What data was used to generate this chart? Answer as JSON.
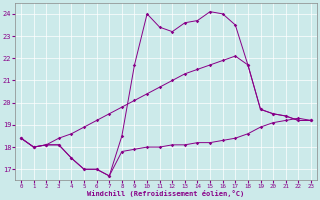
{
  "xlabel": "Windchill (Refroidissement éolien,°C)",
  "ylabel": "",
  "bg_color": "#cceaea",
  "line_color": "#880088",
  "xlim_min": -0.5,
  "xlim_max": 23.5,
  "ylim_min": 16.5,
  "ylim_max": 24.5,
  "yticks": [
    17,
    18,
    19,
    20,
    21,
    22,
    23,
    24
  ],
  "xticks": [
    0,
    1,
    2,
    3,
    4,
    5,
    6,
    7,
    8,
    9,
    10,
    11,
    12,
    13,
    14,
    15,
    16,
    17,
    18,
    19,
    20,
    21,
    22,
    23
  ],
  "line1_x": [
    0,
    1,
    2,
    3,
    4,
    5,
    6,
    7,
    8,
    9,
    10,
    11,
    12,
    13,
    14,
    15,
    16,
    17,
    18,
    19,
    20,
    21,
    22,
    23
  ],
  "line1_y": [
    18.4,
    18.0,
    18.1,
    18.1,
    17.5,
    17.0,
    17.0,
    16.7,
    17.8,
    17.9,
    18.0,
    18.0,
    18.1,
    18.1,
    18.2,
    18.2,
    18.3,
    18.4,
    18.6,
    18.9,
    19.1,
    19.2,
    19.3,
    19.2
  ],
  "line2_x": [
    0,
    1,
    2,
    3,
    4,
    5,
    6,
    7,
    8,
    9,
    10,
    11,
    12,
    13,
    14,
    15,
    16,
    17,
    18,
    19,
    20,
    21,
    22,
    23
  ],
  "line2_y": [
    18.4,
    18.0,
    18.1,
    18.1,
    17.5,
    17.0,
    17.0,
    16.7,
    18.5,
    21.7,
    24.0,
    23.4,
    23.2,
    23.6,
    23.7,
    24.1,
    24.0,
    23.5,
    21.7,
    19.7,
    19.5,
    19.4,
    19.2,
    19.2
  ],
  "line3_x": [
    0,
    1,
    2,
    3,
    4,
    5,
    6,
    7,
    8,
    9,
    10,
    11,
    12,
    13,
    14,
    15,
    16,
    17,
    18,
    19,
    20,
    21,
    22,
    23
  ],
  "line3_y": [
    18.4,
    18.0,
    18.1,
    18.4,
    18.6,
    18.9,
    19.2,
    19.5,
    19.8,
    20.1,
    20.4,
    20.7,
    21.0,
    21.3,
    21.5,
    21.7,
    21.9,
    22.1,
    21.7,
    19.7,
    19.5,
    19.4,
    19.2,
    19.2
  ]
}
